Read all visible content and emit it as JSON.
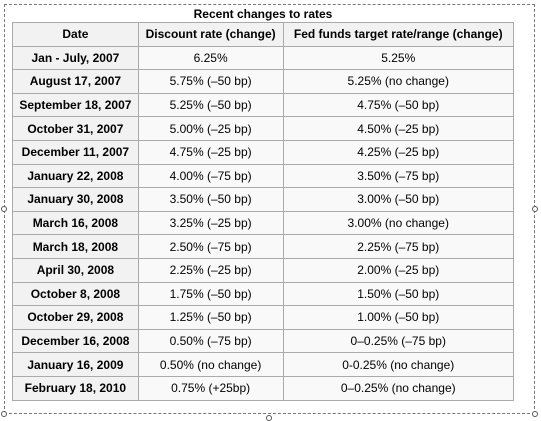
{
  "caption": "Recent changes to rates",
  "headers": {
    "date": "Date",
    "discount": "Discount rate (change)",
    "fed": "Fed funds target rate/range (change)"
  },
  "rows": [
    {
      "date": "Jan - July, 2007",
      "discount": "6.25%",
      "fed": "5.25%"
    },
    {
      "date": "August 17, 2007",
      "discount": "5.75% (–50 bp)",
      "fed": "5.25% (no change)"
    },
    {
      "date": "September 18, 2007",
      "discount": "5.25% (–50 bp)",
      "fed": "4.75% (–50 bp)"
    },
    {
      "date": "October 31, 2007",
      "discount": "5.00% (–25 bp)",
      "fed": "4.50% (–25 bp)"
    },
    {
      "date": "December 11, 2007",
      "discount": "4.75% (–25 bp)",
      "fed": "4.25% (–25 bp)"
    },
    {
      "date": "January 22, 2008",
      "discount": "4.00% (–75 bp)",
      "fed": "3.50% (–75 bp)"
    },
    {
      "date": "January 30, 2008",
      "discount": "3.50% (–50 bp)",
      "fed": "3.00% (–50 bp)"
    },
    {
      "date": "March 16, 2008",
      "discount": "3.25% (–25 bp)",
      "fed": "3.00% (no change)"
    },
    {
      "date": "March 18, 2008",
      "discount": "2.50% (–75 bp)",
      "fed": "2.25% (–75 bp)"
    },
    {
      "date": "April 30, 2008",
      "discount": "2.25% (–25 bp)",
      "fed": "2.00% (–25 bp)"
    },
    {
      "date": "October 8, 2008",
      "discount": "1.75% (–50 bp)",
      "fed": "1.50% (–50 bp)"
    },
    {
      "date": "October 29, 2008",
      "discount": "1.25% (–50 bp)",
      "fed": "1.00% (–50 bp)"
    },
    {
      "date": "December 16, 2008",
      "discount": "0.50% (–75 bp)",
      "fed": "0–0.25% (–75 bp)"
    },
    {
      "date": "January 16, 2009",
      "discount": "0.50% (no change)",
      "fed": "0-0.25% (no change)"
    },
    {
      "date": "February 18, 2010",
      "discount": "0.75% (+25bp)",
      "fed": "0–0.25% (no change)"
    }
  ]
}
